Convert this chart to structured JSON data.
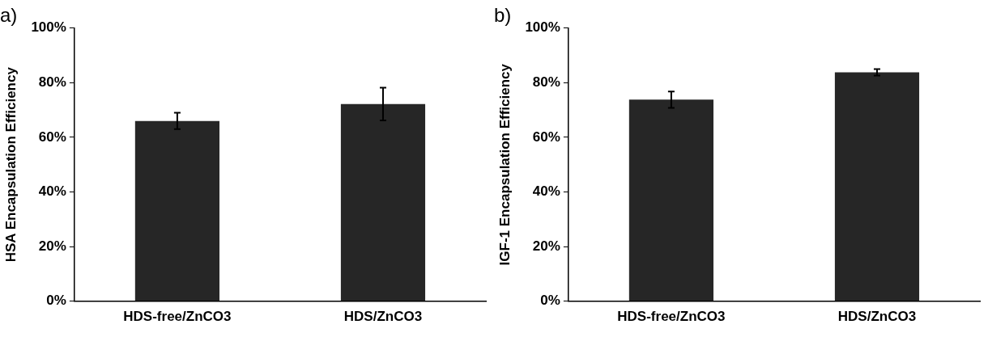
{
  "chart_data": [
    {
      "type": "bar",
      "title": "a)",
      "ylabel": "HSA Encapsulation Efficiency",
      "categories": [
        "HDS-free/ZnCO3",
        "HDS/ZnCO3"
      ],
      "series": [
        {
          "color": "#262626",
          "values": [
            66,
            72.2
          ],
          "errors": [
            3,
            6
          ]
        }
      ],
      "ylim": [
        0,
        100
      ],
      "yticks": [
        {
          "value": 0,
          "label": "0%"
        },
        {
          "value": 20,
          "label": "20%"
        },
        {
          "value": 40,
          "label": "40%"
        },
        {
          "value": 60,
          "label": "60%"
        },
        {
          "value": 80,
          "label": "80%"
        },
        {
          "value": 100,
          "label": "100%"
        }
      ],
      "grid": false,
      "legend": false
    },
    {
      "type": "bar",
      "title": "b)",
      "ylabel": "IGF-1 Encapsulation Efficiency",
      "categories": [
        "HDS-free/ZnCO3",
        "HDS/ZnCO3"
      ],
      "series": [
        {
          "color": "#262626",
          "values": [
            73.8,
            83.8
          ],
          "errors": [
            3,
            1.2
          ]
        }
      ],
      "ylim": [
        0,
        100
      ],
      "yticks": [
        {
          "value": 0,
          "label": "0%"
        },
        {
          "value": 20,
          "label": "20%"
        },
        {
          "value": 40,
          "label": "40%"
        },
        {
          "value": 60,
          "label": "60%"
        },
        {
          "value": 80,
          "label": "80%"
        },
        {
          "value": 100,
          "label": "100%"
        }
      ],
      "grid": false,
      "legend": false
    }
  ]
}
